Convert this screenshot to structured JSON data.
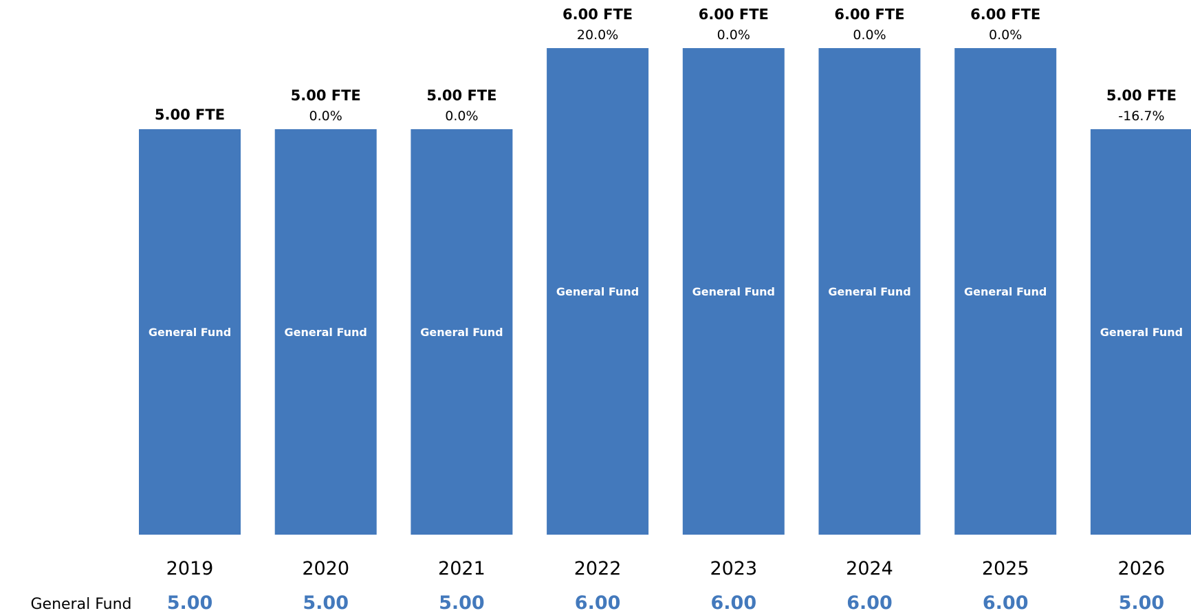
{
  "chart_data": {
    "type": "bar",
    "categories": [
      "2019",
      "2020",
      "2021",
      "2022",
      "2023",
      "2024",
      "2025",
      "2026"
    ],
    "values": [
      5.0,
      5.0,
      5.0,
      6.0,
      6.0,
      6.0,
      6.0,
      5.0
    ],
    "fte_labels": [
      "5.00 FTE",
      "5.00 FTE",
      "5.00 FTE",
      "6.00 FTE",
      "6.00 FTE",
      "6.00 FTE",
      "6.00 FTE",
      "5.00 FTE"
    ],
    "pct_labels": [
      "",
      "0.0%",
      "0.0%",
      "20.0%",
      "0.0%",
      "0.0%",
      "0.0%",
      "-16.7%"
    ],
    "bar_inner_label": "General Fund",
    "table_row_label": "General Fund",
    "table_values": [
      "5.00",
      "5.00",
      "5.00",
      "6.00",
      "6.00",
      "6.00",
      "6.00",
      "5.00"
    ],
    "ylim": [
      0,
      6.0
    ],
    "colors": {
      "bar": "#4379BC",
      "fund_value": "#4379BC"
    },
    "grid": false,
    "legend": "none"
  }
}
